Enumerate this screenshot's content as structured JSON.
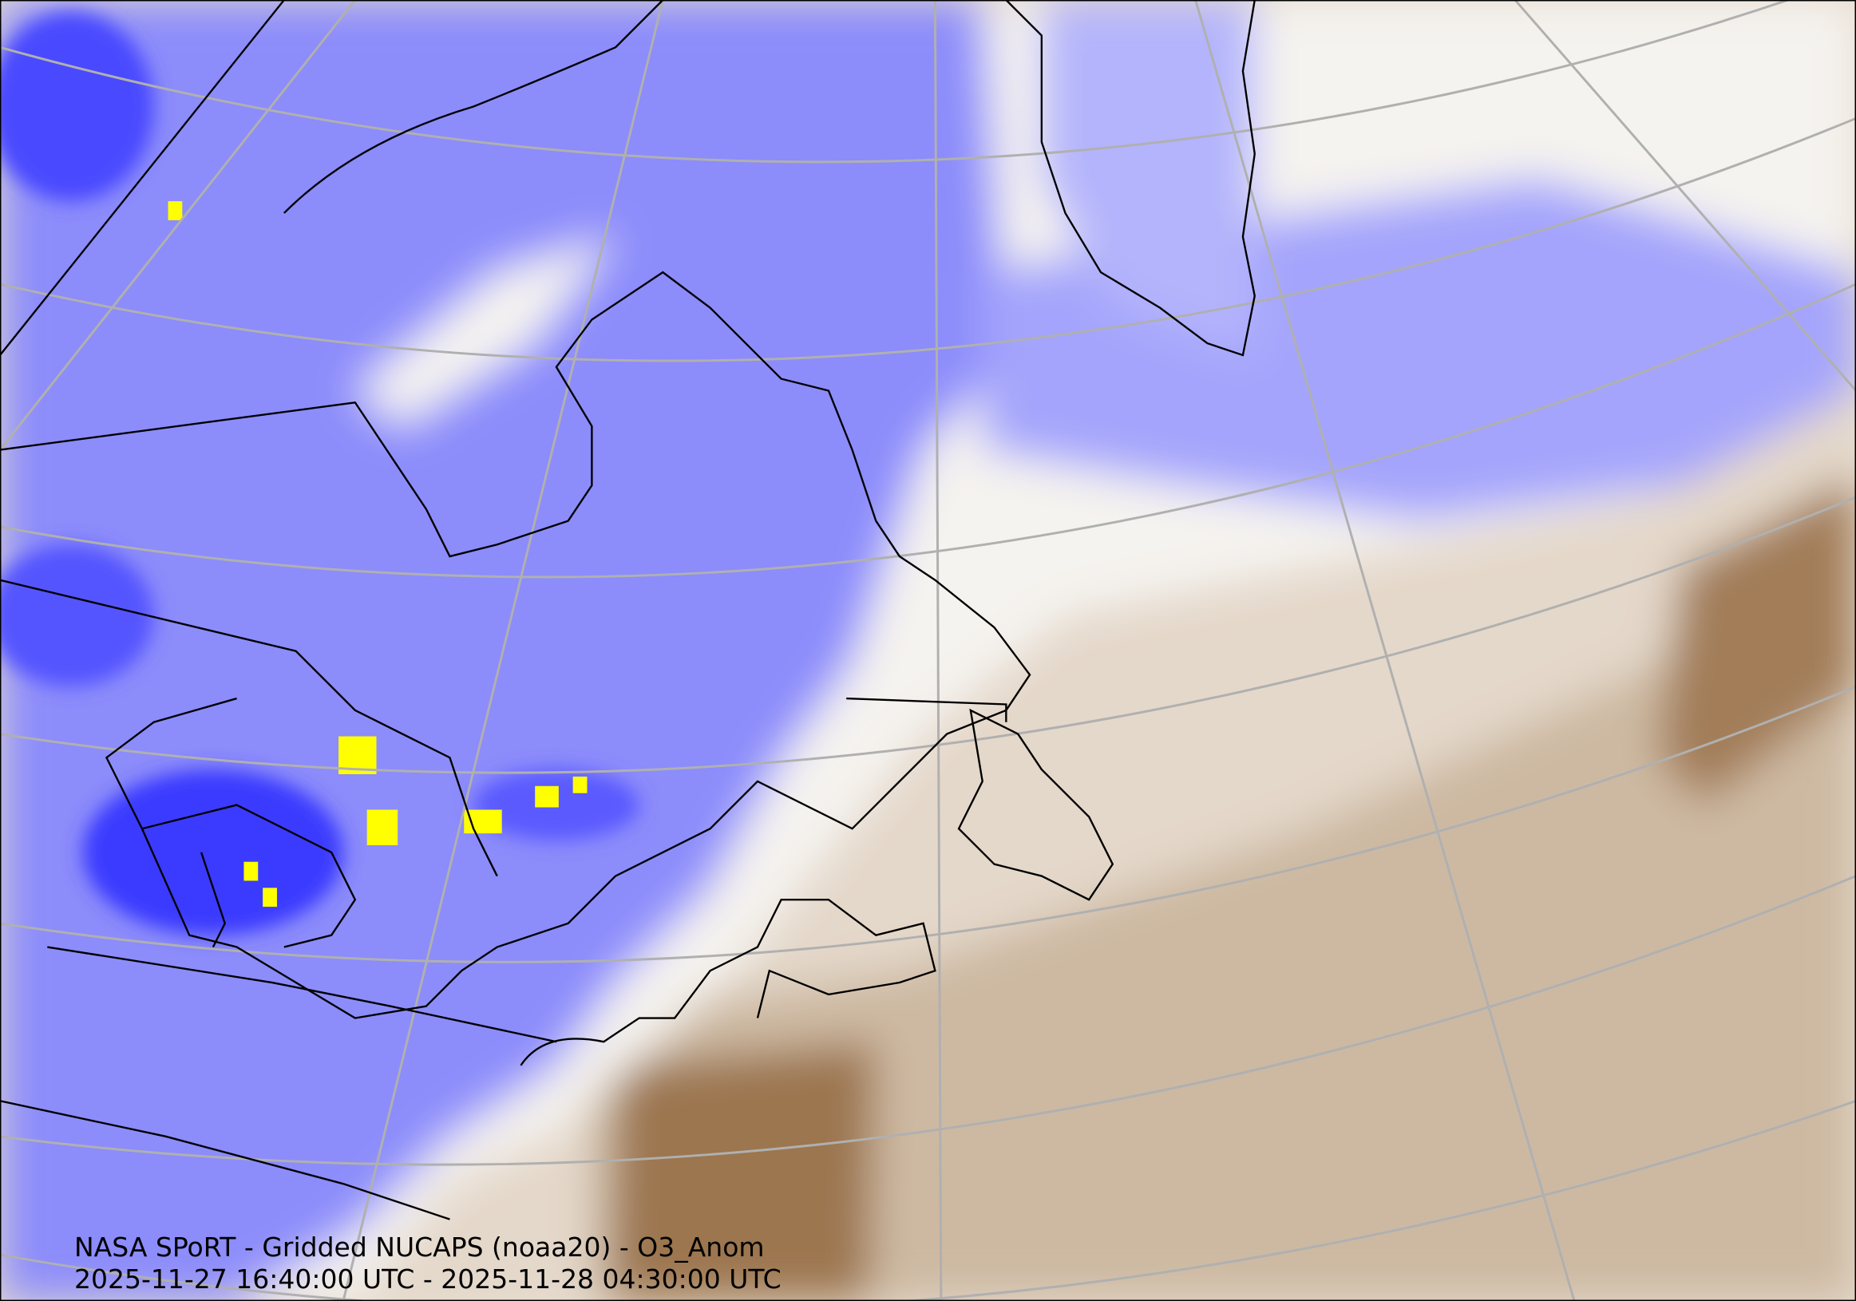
{
  "map": {
    "title": "NASA SPoRT - Gridded NUCAPS (noaa20) - O3_Anom",
    "time_range": "2025-11-27 16:40:00 UTC - 2025-11-28 04:30:00 UTC",
    "colors": {
      "negative_anomaly": "#7a7aff",
      "strong_negative": "#2a2aff",
      "neutral": "#f4f2ee",
      "positive_anomaly": "#c9b49c",
      "strong_positive": "#8c6239",
      "extreme_marker": "#ffff00",
      "graticule": "#b0b0b0",
      "coastline": "#000000"
    }
  }
}
